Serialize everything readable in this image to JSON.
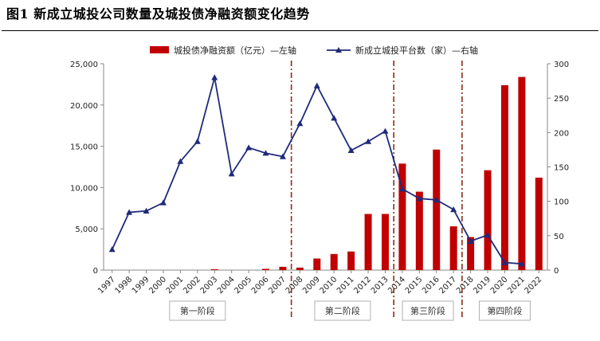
{
  "title": "图1 新成立城投公司数量及城投债净融资额变化趋势",
  "chart_data": {
    "type": "bar+line",
    "title": "图1 新成立城投公司数量及城投债净融资额变化趋势",
    "categories": [
      "1997",
      "1998",
      "1999",
      "2000",
      "2001",
      "2002",
      "2003",
      "2004",
      "2005",
      "2006",
      "2007",
      "2008",
      "2009",
      "2010",
      "2011",
      "2012",
      "2013",
      "2014",
      "2015",
      "2016",
      "2017",
      "2018",
      "2019",
      "2020",
      "2021",
      "2022"
    ],
    "series": [
      {
        "name": "城投债净融资额（亿元）—左轴",
        "type": "bar",
        "axis": "left",
        "color": "#C00000",
        "values": [
          0,
          0,
          0,
          0,
          0,
          0,
          100,
          0,
          0,
          150,
          400,
          300,
          1400,
          1950,
          2250,
          6800,
          6800,
          12900,
          9500,
          14600,
          5300,
          4000,
          12100,
          22400,
          23400,
          11200
        ]
      },
      {
        "name": "新成立城投平台数（家）—右轴",
        "type": "line",
        "axis": "right",
        "color": "#1F2A7A",
        "marker": "triangle",
        "values": [
          30,
          84,
          86,
          98,
          158,
          187,
          280,
          140,
          178,
          170,
          165,
          213,
          268,
          221,
          174,
          187,
          202,
          118,
          104,
          102,
          88,
          42,
          51,
          11,
          9,
          null
        ]
      }
    ],
    "ylim_left": [
      0,
      25000
    ],
    "yticks_left": [
      "0",
      "5,000",
      "10,000",
      "15,000",
      "20,000",
      "25,000"
    ],
    "ylim_right": [
      0,
      300
    ],
    "yticks_right": [
      "0",
      "50",
      "100",
      "150",
      "200",
      "250",
      "300"
    ],
    "legend_position": "top",
    "grid": false,
    "phase_dividers_after": [
      "2007",
      "2013",
      "2017"
    ],
    "phases": [
      {
        "label": "第一阶段",
        "start": "1997",
        "end": "2007"
      },
      {
        "label": "第二阶段",
        "start": "2008",
        "end": "2013"
      },
      {
        "label": "第三阶段",
        "start": "2014",
        "end": "2017"
      },
      {
        "label": "第四阶段",
        "start": "2018",
        "end": "2022"
      }
    ]
  }
}
